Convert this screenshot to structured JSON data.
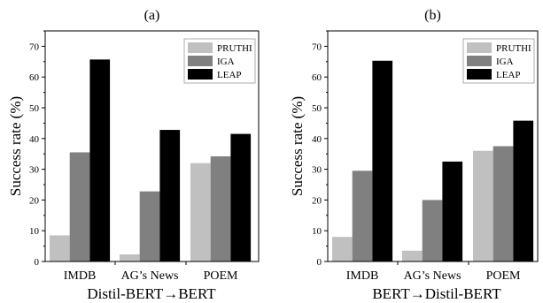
{
  "chart_data": [
    {
      "type": "bar",
      "panel_label": "(a)",
      "title": "(a)",
      "xlabel": "Distil-BERT→BERT",
      "ylabel": "Success rate  (%)",
      "categories": [
        "IMDB",
        "AG’s News",
        "POEM"
      ],
      "ylim": [
        0,
        75
      ],
      "yticks": [
        0,
        10,
        20,
        30,
        40,
        50,
        60,
        70
      ],
      "grid": false,
      "legend_position": "top-right",
      "series": [
        {
          "name": "PRUTHI",
          "color": "#c0c0c0",
          "values": [
            8.5,
            2.3,
            32.0
          ]
        },
        {
          "name": "IGA",
          "color": "#808080",
          "values": [
            35.5,
            22.8,
            34.2
          ]
        },
        {
          "name": "LEAP",
          "color": "#000000",
          "values": [
            65.7,
            42.8,
            41.5
          ]
        }
      ]
    },
    {
      "type": "bar",
      "panel_label": "(b)",
      "title": "(b)",
      "xlabel": "BERT→Distil-BERT",
      "ylabel": "Success rate  (%)",
      "categories": [
        "IMDB",
        "AG’s News",
        "POEM"
      ],
      "ylim": [
        0,
        75
      ],
      "yticks": [
        0,
        10,
        20,
        30,
        40,
        50,
        60,
        70
      ],
      "grid": false,
      "legend_position": "top-right",
      "series": [
        {
          "name": "PRUTHI",
          "color": "#c0c0c0",
          "values": [
            8.0,
            3.5,
            36.0
          ]
        },
        {
          "name": "IGA",
          "color": "#808080",
          "values": [
            29.5,
            20.0,
            37.5
          ]
        },
        {
          "name": "LEAP",
          "color": "#000000",
          "values": [
            65.3,
            32.5,
            45.8
          ]
        }
      ]
    }
  ]
}
